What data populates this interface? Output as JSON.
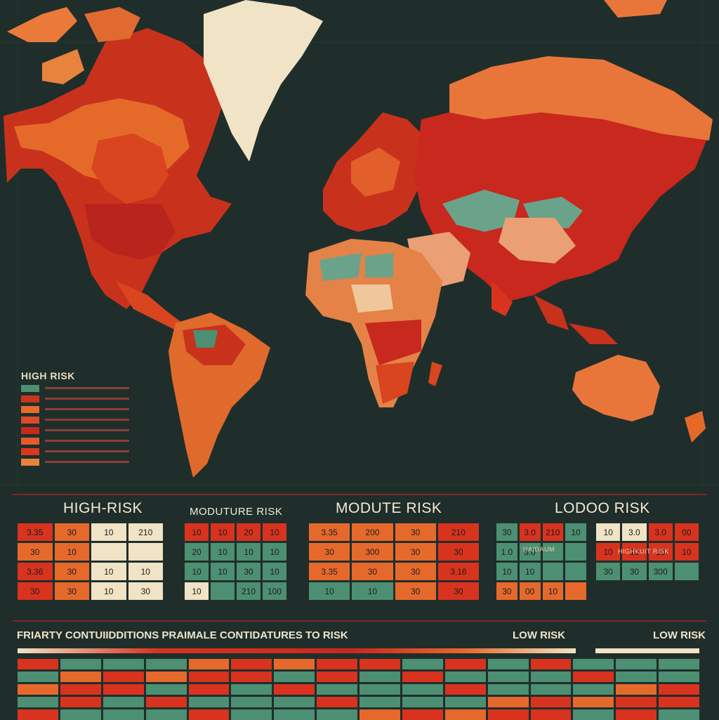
{
  "map": {
    "legend_title": "HIGH RISK",
    "legend_swatches": [
      "#4d8f72",
      "#c9361f",
      "#e66b2c",
      "#de4a27",
      "#c7281f",
      "#e55a2a",
      "#d9381f",
      "#e9823b"
    ]
  },
  "colors": {
    "background": "#1f2e2b",
    "high": "#d8331f",
    "mid": "#e6692c",
    "low": "#4d8f72",
    "cream": "#f1e3c5"
  },
  "sections": {
    "high": {
      "title": "HIGH-RISK",
      "rows": [
        [
          "3.35",
          "30",
          "10",
          "210"
        ],
        [
          "30",
          "10",
          "",
          ""
        ],
        [
          "3.36",
          "30",
          "10",
          "10"
        ],
        [
          "30",
          "30",
          "10",
          "30"
        ]
      ]
    },
    "moderate_a": {
      "title": "MODUTURE RISK",
      "rows": [
        [
          "10",
          "10",
          "20",
          "10"
        ],
        [
          "20",
          "10",
          "10",
          "10"
        ],
        [
          "10",
          "10",
          "30",
          "10"
        ],
        [
          "10",
          "",
          "210",
          "100"
        ]
      ]
    },
    "moderate_b": {
      "title": "MODUTE RISK",
      "rows": [
        [
          "3.35",
          "200",
          "30",
          "210"
        ],
        [
          "30",
          "300",
          "30",
          "30"
        ],
        [
          "3.35",
          "30",
          "30",
          "3.16"
        ],
        [
          "10",
          "10",
          "30",
          "30"
        ]
      ]
    },
    "low": {
      "title": "LODOO  RISK",
      "sublabel_a": "HAIDAUM",
      "sublabel_b": "HIGHKUIT RISK",
      "rows_left": [
        [
          "30",
          "3.0",
          "210",
          "10"
        ],
        [
          "1.0",
          "3.0",
          "",
          ""
        ],
        [
          "10",
          "10",
          "",
          ""
        ],
        [
          "30",
          "00",
          "10",
          ""
        ]
      ],
      "rows_right": [
        [
          "10",
          "3.0",
          "3.0",
          "00"
        ],
        [
          "10",
          "10",
          "10",
          "10"
        ],
        [
          "30",
          "30",
          "300",
          ""
        ]
      ]
    }
  },
  "footer": {
    "title": "FRIARTY CONTUIIDDITIONS PRAIMALE CONTIDATURES TO RISK",
    "low_risk_a": "LOW RISK",
    "low_risk_b": "LOW RISK"
  }
}
